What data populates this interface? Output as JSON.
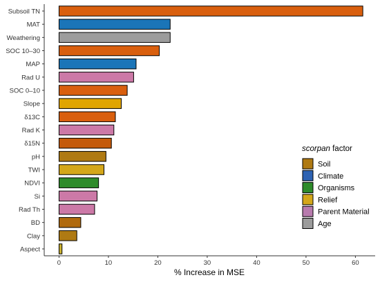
{
  "chart_data": {
    "type": "bar",
    "orientation": "horizontal",
    "xlabel": "% Increase in MSE",
    "xlim": [
      -3,
      64
    ],
    "xticks": [
      0,
      10,
      20,
      30,
      40,
      50,
      60
    ],
    "grid": false,
    "legend_placement": "right",
    "legend_title_italic": "scorpan",
    "legend_title_rest": " factor",
    "legend": [
      {
        "label": "Soil",
        "color": "#AF7A13"
      },
      {
        "label": "Climate",
        "color": "#2E63B3"
      },
      {
        "label": "Organisms",
        "color": "#2E8B2A"
      },
      {
        "label": "Relief",
        "color": "#D4A71A"
      },
      {
        "label": "Parent Material",
        "color": "#B87BAE"
      },
      {
        "label": "Age",
        "color": "#9C9C9C"
      }
    ],
    "categories": [
      "Subsoil TN",
      "MAT",
      "Weathering",
      "SOC 10–30",
      "MAP",
      "Rad U",
      "SOC 0–10",
      "Slope",
      "δ13C",
      "Rad K",
      "δ15N",
      "pH",
      "TWI",
      "NDVI",
      "Si",
      "Rad Th",
      "BD",
      "Clay",
      "Aspect"
    ],
    "values": [
      61.5,
      22.5,
      22.5,
      20.3,
      15.6,
      15.1,
      13.8,
      12.6,
      11.4,
      11.1,
      10.6,
      9.5,
      9.1,
      8.0,
      7.7,
      7.2,
      4.4,
      3.6,
      0.6
    ],
    "colors": [
      "#D95F0E",
      "#1B75B8",
      "#9C9C9C",
      "#D95F0E",
      "#1B75B8",
      "#CC79A7",
      "#D95F0E",
      "#E0A500",
      "#D95F0E",
      "#CC79A7",
      "#C45A0A",
      "#AF7A13",
      "#D4A71A",
      "#2E8B2A",
      "#CC79A7",
      "#CC79A7",
      "#B06A0D",
      "#AF7A13",
      "#C9B030"
    ]
  }
}
